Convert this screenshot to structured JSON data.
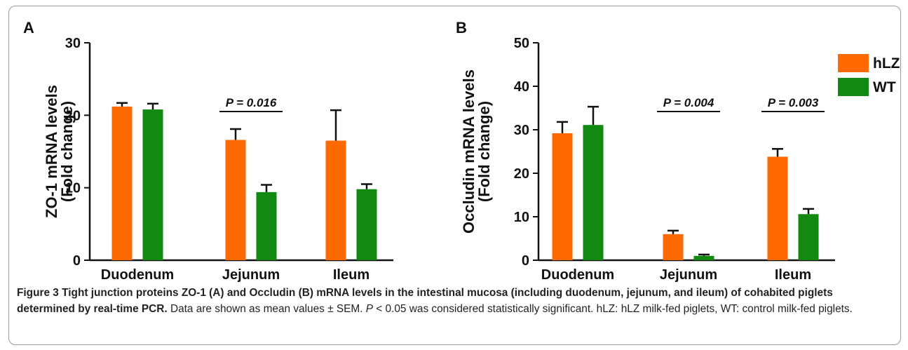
{
  "colors": {
    "hlz": "#ff6a00",
    "wt": "#128a12"
  },
  "legend": {
    "placement": "top-right",
    "items": [
      "hLZ",
      "WT"
    ]
  },
  "chart_data": [
    {
      "type": "bar",
      "panel_label": "A",
      "categories": [
        "Duodenum",
        "Jejunum",
        "Ileum"
      ],
      "ylabel_line1": "ZO-1 mRNA levels",
      "ylabel_line2": "(Fold change)",
      "ylim": [
        0,
        30
      ],
      "yticks": [
        "0",
        "10",
        "20",
        "30"
      ],
      "series": [
        {
          "name": "hLZ",
          "values": [
            21.2,
            16.6,
            16.5
          ],
          "errors": [
            0.5,
            1.5,
            4.2
          ]
        },
        {
          "name": "WT",
          "values": [
            20.8,
            9.4,
            9.8
          ],
          "errors": [
            0.8,
            1.0,
            0.7
          ]
        }
      ],
      "annotations": [
        {
          "category": "Jejunum",
          "label": "P = 0.016"
        }
      ]
    },
    {
      "type": "bar",
      "panel_label": "B",
      "categories": [
        "Duodenum",
        "Jejunum",
        "Ileum"
      ],
      "ylabel_line1": "Occludin mRNA levels",
      "ylabel_line2": "(Fold change)",
      "ylim": [
        0,
        50
      ],
      "yticks": [
        "0",
        "10",
        "20",
        "30",
        "40",
        "50"
      ],
      "series": [
        {
          "name": "hLZ",
          "values": [
            29.2,
            6.0,
            23.8
          ],
          "errors": [
            2.6,
            0.8,
            1.8
          ]
        },
        {
          "name": "WT",
          "values": [
            31.1,
            1.0,
            10.6
          ],
          "errors": [
            4.2,
            0.3,
            1.2
          ]
        }
      ],
      "annotations": [
        {
          "category": "Jejunum",
          "label": "P = 0.004"
        },
        {
          "category": "Ileum",
          "label": "P = 0.003"
        }
      ]
    }
  ],
  "caption": {
    "bold": "Figure 3  Tight junction proteins ZO-1 (A) and Occludin (B) mRNA levels in the intestinal mucosa (including duodenum, jejunum, and ileum) of cohabited piglets determined by real-time PCR.",
    "text1": " Data are shown as mean values ± SEM. ",
    "italic": "P",
    "text2": " < 0.05 was considered statistically significant. hLZ: hLZ milk-fed piglets, WT: control milk-fed piglets."
  }
}
